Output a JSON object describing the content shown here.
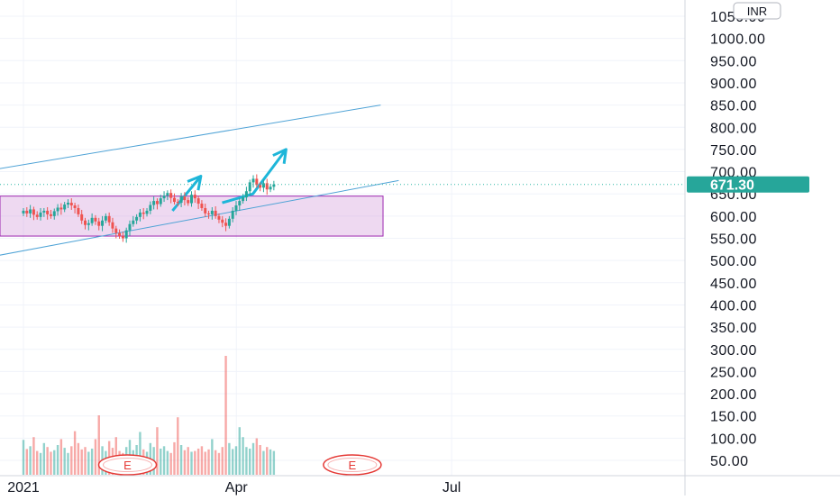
{
  "chart_data": {
    "type": "candlestick",
    "currency": "INR",
    "last_price": 671.3,
    "last_price_label": "671.30",
    "y_ticks": [
      "50.00",
      "100.00",
      "150.00",
      "200.00",
      "250.00",
      "300.00",
      "350.00",
      "400.00",
      "450.00",
      "500.00",
      "550.00",
      "600.00",
      "650.00",
      "700.00",
      "750.00",
      "800.00",
      "850.00",
      "900.00",
      "950.00",
      "1000.00",
      "1050.00"
    ],
    "ylim": [
      25,
      1075
    ],
    "x_labels": [
      "2021",
      "Apr",
      "Jul"
    ],
    "x_range": [
      "2021-01-01",
      "2021-08-15"
    ],
    "candles_start": "2021-01-01",
    "candle_closes": [
      612,
      606,
      615,
      603,
      598,
      608,
      612,
      604,
      600,
      611,
      619,
      615,
      626,
      630,
      624,
      618,
      604,
      590,
      580,
      584,
      596,
      588,
      578,
      590,
      600,
      586,
      572,
      562,
      555,
      550,
      568,
      582,
      590,
      598,
      608,
      605,
      612,
      625,
      634,
      627,
      640,
      646,
      652,
      641,
      632,
      630,
      644,
      636,
      629,
      648,
      640,
      628,
      618,
      606,
      604,
      612,
      600,
      592,
      585,
      578,
      594,
      612,
      624,
      634,
      642,
      656,
      676,
      684,
      670,
      664,
      674,
      660,
      666,
      671.3
    ],
    "rising_color": "#26a69a",
    "falling_color": "#ef5350",
    "volumes": [
      88,
      65,
      72,
      95,
      60,
      55,
      80,
      70,
      58,
      62,
      75,
      90,
      68,
      55,
      72,
      110,
      80,
      64,
      70,
      58,
      66,
      90,
      150,
      72,
      60,
      85,
      68,
      95,
      60,
      55,
      70,
      88,
      62,
      75,
      108,
      64,
      58,
      80,
      70,
      120,
      66,
      72,
      60,
      55,
      82,
      145,
      75,
      62,
      70,
      58,
      60,
      66,
      72,
      58,
      64,
      90,
      62,
      55,
      70,
      300,
      80,
      65,
      72,
      120,
      95,
      70,
      66,
      80,
      92,
      75,
      60,
      70,
      64,
      60
    ],
    "volume_colors_by_direction": true,
    "annotations": {
      "range_box": {
        "from": "2021-01-01",
        "to": "2021-06-02",
        "low": 555,
        "high": 645,
        "color": "#ce93d8"
      },
      "channel_upper": {
        "from_date": "2020-12-20",
        "from_price": 705,
        "to_date": "2021-06-01",
        "to_price": 850,
        "color": "#4fa3d6"
      },
      "channel_lower": {
        "from_date": "2020-12-20",
        "from_price": 510,
        "to_date": "2021-06-01",
        "to_price": 680,
        "color": "#4fa3d6"
      },
      "projection_arrow": {
        "points": [
          [
            "2021-03-26",
            630
          ],
          [
            "2021-04-08",
            650
          ],
          [
            "2021-04-22",
            750
          ]
        ],
        "color": "#1eb6d9"
      },
      "small_arrow": {
        "points": [
          [
            "2021-03-05",
            612
          ],
          [
            "2021-03-17",
            690
          ]
        ],
        "color": "#1eb6d9"
      }
    },
    "events": [
      {
        "date": "2021-02-14",
        "label": "E"
      },
      {
        "date": "2021-05-20",
        "label": "E"
      }
    ],
    "colors": {
      "grid": "#f0f3fa",
      "crosshair": "#2bb5a6",
      "price_badge": "#26a69a",
      "axis_text": "#131722",
      "event": "#e53935"
    }
  }
}
